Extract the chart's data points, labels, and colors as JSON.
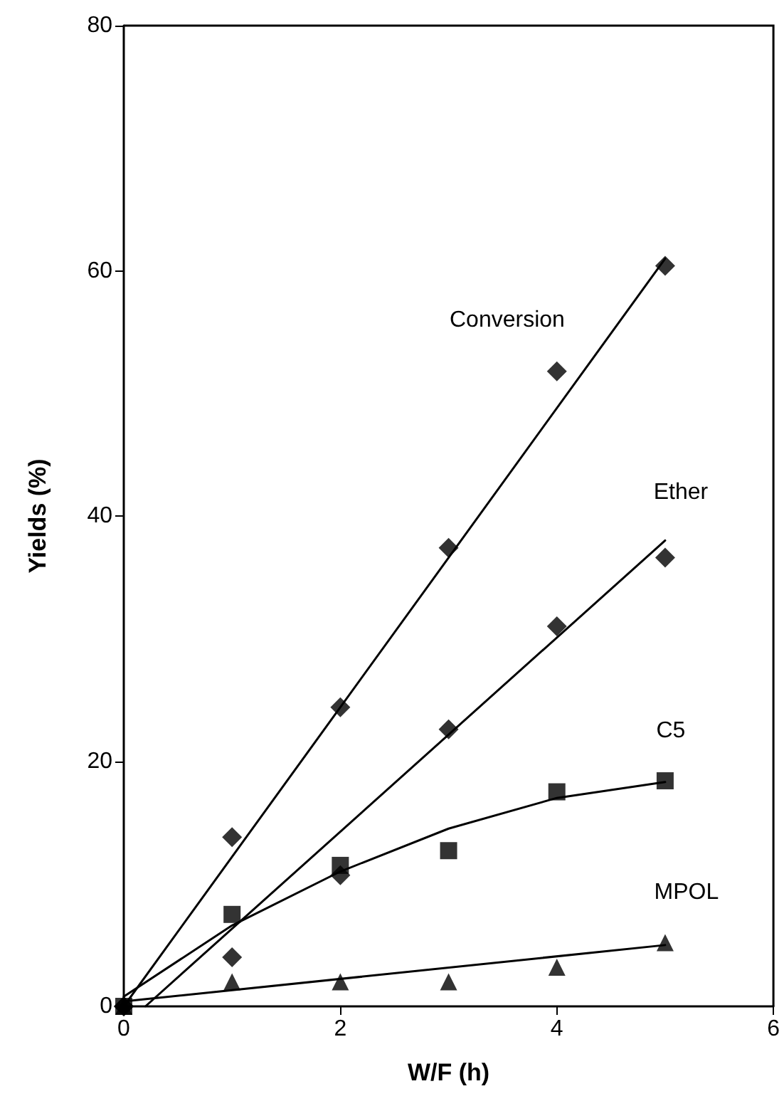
{
  "chart_data": {
    "type": "scatter",
    "xlabel": "W/F (h)",
    "ylabel": "Yields (%)",
    "x": [
      0,
      1,
      2,
      3,
      4,
      5
    ],
    "series": [
      {
        "name": "Conversion",
        "color": "#000000",
        "marker": "diamond",
        "values": [
          0,
          13.8,
          24.4,
          37.4,
          51.8,
          60.4
        ]
      },
      {
        "name": "Ether",
        "color": "#000000",
        "marker": "diamond",
        "values": [
          0,
          4,
          10.7,
          22.6,
          31,
          36.6
        ]
      },
      {
        "name": "C5",
        "color": "#000000",
        "marker": "square",
        "values": [
          0,
          7.5,
          11.5,
          12.7,
          17.5,
          18.4
        ]
      },
      {
        "name": "MPOL",
        "color": "#000000",
        "marker": "triangle",
        "values": [
          0,
          2,
          2,
          2,
          3.2,
          5.2
        ]
      },
      {
        "type": "line",
        "color": "#000000",
        "marker": "none",
        "x": [
          0,
          5
        ],
        "values": [
          0,
          61
        ]
      },
      {
        "type": "line",
        "color": "#000000",
        "marker": "none",
        "x": [
          0.2,
          5
        ],
        "values": [
          0,
          38
        ]
      },
      {
        "type": "line",
        "color": "#000000",
        "marker": "none",
        "x": [
          0,
          1,
          2,
          3,
          4,
          5
        ],
        "values": [
          0.8,
          6.6,
          11,
          14.5,
          17,
          18.3
        ]
      },
      {
        "type": "line",
        "color": "#000000",
        "marker": "none",
        "x": [
          0,
          5
        ],
        "values": [
          0.4,
          5
        ]
      }
    ],
    "xlim": [
      0,
      6
    ],
    "xticks": [
      0,
      2,
      4,
      6
    ],
    "ylim": [
      0,
      80
    ],
    "yticks": [
      0,
      20,
      40,
      60,
      80
    ],
    "grid": false,
    "line_style": "solid"
  }
}
